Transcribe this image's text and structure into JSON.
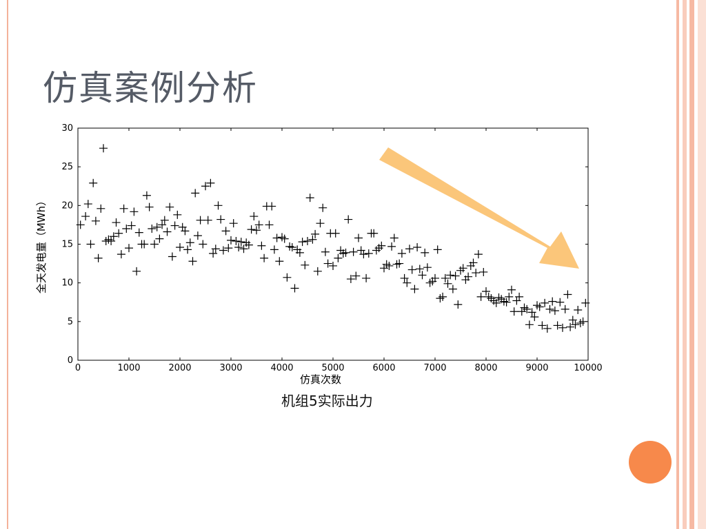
{
  "slide": {
    "title": "仿真案例分析",
    "caption": "机组5实际出力",
    "accent_color": "#f7894b",
    "frame_color": "#f4b29a",
    "arrow_color": "#fbc67a"
  },
  "chart_data": {
    "type": "scatter",
    "marker": "+",
    "xlabel": "仿真次数",
    "ylabel": "全天发电量（MWh）",
    "xlim": [
      0,
      10000
    ],
    "ylim": [
      0,
      30
    ],
    "x_ticks": [
      "0",
      "1000",
      "2000",
      "3000",
      "4000",
      "5000",
      "6000",
      "7000",
      "8000",
      "9000",
      "10000"
    ],
    "y_ticks": [
      "0",
      "5",
      "10",
      "15",
      "20",
      "25",
      "30"
    ],
    "grid": false,
    "points": [
      [
        50,
        17.5
      ],
      [
        150,
        18.6
      ],
      [
        200,
        20.2
      ],
      [
        250,
        15
      ],
      [
        300,
        22.9
      ],
      [
        350,
        18
      ],
      [
        400,
        13.2
      ],
      [
        450,
        19.6
      ],
      [
        500,
        27.4
      ],
      [
        550,
        15.4
      ],
      [
        600,
        15.6
      ],
      [
        650,
        15.4
      ],
      [
        700,
        16
      ],
      [
        750,
        17.8
      ],
      [
        800,
        16.4
      ],
      [
        850,
        13.7
      ],
      [
        900,
        19.6
      ],
      [
        950,
        17
      ],
      [
        1000,
        14.5
      ],
      [
        1050,
        17.4
      ],
      [
        1100,
        19.2
      ],
      [
        1150,
        11.5
      ],
      [
        1200,
        16.5
      ],
      [
        1250,
        15
      ],
      [
        1300,
        15
      ],
      [
        1350,
        21.3
      ],
      [
        1400,
        19.8
      ],
      [
        1450,
        17
      ],
      [
        1500,
        15
      ],
      [
        1550,
        17.2
      ],
      [
        1600,
        15.7
      ],
      [
        1650,
        17.5
      ],
      [
        1700,
        18.1
      ],
      [
        1750,
        16.6
      ],
      [
        1800,
        19.8
      ],
      [
        1850,
        13.4
      ],
      [
        1900,
        17.4
      ],
      [
        1950,
        18.8
      ],
      [
        2000,
        14.6
      ],
      [
        2050,
        17.2
      ],
      [
        2100,
        16.7
      ],
      [
        2150,
        14.3
      ],
      [
        2200,
        15.2
      ],
      [
        2250,
        12.8
      ],
      [
        2300,
        21.6
      ],
      [
        2350,
        16.1
      ],
      [
        2400,
        18.1
      ],
      [
        2450,
        15
      ],
      [
        2500,
        22.5
      ],
      [
        2550,
        18.1
      ],
      [
        2600,
        22.9
      ],
      [
        2650,
        13.8
      ],
      [
        2700,
        14.4
      ],
      [
        2750,
        20
      ],
      [
        2800,
        18.2
      ],
      [
        2850,
        14.2
      ],
      [
        2900,
        16.7
      ],
      [
        2950,
        14.5
      ],
      [
        3000,
        15.5
      ],
      [
        3050,
        17.7
      ],
      [
        3100,
        15.4
      ],
      [
        3150,
        14.6
      ],
      [
        3200,
        15.3
      ],
      [
        3250,
        14.4
      ],
      [
        3300,
        15.2
      ],
      [
        3350,
        14.9
      ],
      [
        3400,
        16.9
      ],
      [
        3450,
        18.6
      ],
      [
        3500,
        16.8
      ],
      [
        3550,
        17.5
      ],
      [
        3600,
        14.8
      ],
      [
        3650,
        13.2
      ],
      [
        3700,
        19.9
      ],
      [
        3750,
        17.5
      ],
      [
        3800,
        19.9
      ],
      [
        3850,
        14.3
      ],
      [
        3900,
        15.8
      ],
      [
        3950,
        12.8
      ],
      [
        4000,
        15.9
      ],
      [
        4050,
        15.7
      ],
      [
        4100,
        10.7
      ],
      [
        4150,
        14.7
      ],
      [
        4200,
        14.6
      ],
      [
        4250,
        9.3
      ],
      [
        4300,
        14.3
      ],
      [
        4350,
        13.9
      ],
      [
        4400,
        15.3
      ],
      [
        4450,
        12.3
      ],
      [
        4500,
        15.4
      ],
      [
        4550,
        21
      ],
      [
        4600,
        15.6
      ],
      [
        4650,
        16.3
      ],
      [
        4700,
        11.5
      ],
      [
        4750,
        17.7
      ],
      [
        4800,
        19.7
      ],
      [
        4850,
        14
      ],
      [
        4900,
        12.5
      ],
      [
        4950,
        16.4
      ],
      [
        5000,
        12.2
      ],
      [
        5050,
        16.4
      ],
      [
        5100,
        13.2
      ],
      [
        5150,
        14.2
      ],
      [
        5200,
        13.8
      ],
      [
        5250,
        13.9
      ],
      [
        5300,
        18.2
      ],
      [
        5350,
        10.5
      ],
      [
        5400,
        14
      ],
      [
        5450,
        10.9
      ],
      [
        5500,
        15.8
      ],
      [
        5550,
        14.2
      ],
      [
        5600,
        13.7
      ],
      [
        5650,
        10.6
      ],
      [
        5700,
        13.8
      ],
      [
        5750,
        16.4
      ],
      [
        5800,
        16.4
      ],
      [
        5850,
        14.2
      ],
      [
        5900,
        14.5
      ],
      [
        5950,
        14.8
      ],
      [
        6000,
        11.9
      ],
      [
        6050,
        12.4
      ],
      [
        6100,
        12.2
      ],
      [
        6150,
        14.7
      ],
      [
        6200,
        15.8
      ],
      [
        6250,
        12.4
      ],
      [
        6300,
        12.5
      ],
      [
        6350,
        13.8
      ],
      [
        6400,
        10.6
      ],
      [
        6450,
        10
      ],
      [
        6500,
        14.4
      ],
      [
        6550,
        11.7
      ],
      [
        6600,
        9.2
      ],
      [
        6650,
        14.6
      ],
      [
        6700,
        11.8
      ],
      [
        6750,
        11
      ],
      [
        6800,
        13.9
      ],
      [
        6850,
        12
      ],
      [
        6900,
        10
      ],
      [
        6950,
        10.2
      ],
      [
        7000,
        10.6
      ],
      [
        7050,
        14.3
      ],
      [
        7100,
        8
      ],
      [
        7150,
        8.2
      ],
      [
        7200,
        10.6
      ],
      [
        7250,
        9.9
      ],
      [
        7300,
        11
      ],
      [
        7350,
        9.2
      ],
      [
        7400,
        10.9
      ],
      [
        7450,
        7.2
      ],
      [
        7500,
        11.6
      ],
      [
        7550,
        11.9
      ],
      [
        7600,
        10.4
      ],
      [
        7650,
        10.8
      ],
      [
        7700,
        12.2
      ],
      [
        7750,
        12.6
      ],
      [
        7800,
        11.3
      ],
      [
        7850,
        13.7
      ],
      [
        7900,
        8.2
      ],
      [
        7950,
        11.4
      ],
      [
        8000,
        8.9
      ],
      [
        8050,
        8.2
      ],
      [
        8100,
        8
      ],
      [
        8150,
        7.7
      ],
      [
        8200,
        7.4
      ],
      [
        8250,
        8.1
      ],
      [
        8300,
        7.9
      ],
      [
        8350,
        7.6
      ],
      [
        8400,
        7.5
      ],
      [
        8450,
        8.2
      ],
      [
        8500,
        9.1
      ],
      [
        8550,
        6.3
      ],
      [
        8600,
        7.7
      ],
      [
        8650,
        8.2
      ],
      [
        8700,
        6.3
      ],
      [
        8750,
        6.8
      ],
      [
        8800,
        6.6
      ],
      [
        8850,
        4.6
      ],
      [
        8900,
        6.2
      ],
      [
        8950,
        5.6
      ],
      [
        9000,
        7.1
      ],
      [
        9050,
        6.9
      ],
      [
        9100,
        4.5
      ],
      [
        9150,
        7.4
      ],
      [
        9200,
        4.1
      ],
      [
        9250,
        6.6
      ],
      [
        9300,
        7.6
      ],
      [
        9350,
        6.4
      ],
      [
        9400,
        4.5
      ],
      [
        9450,
        7.5
      ],
      [
        9500,
        4.2
      ],
      [
        9550,
        6.6
      ],
      [
        9600,
        8.5
      ],
      [
        9650,
        4.3
      ],
      [
        9700,
        5.2
      ],
      [
        9750,
        4.6
      ],
      [
        9800,
        6.5
      ],
      [
        9850,
        4.8
      ],
      [
        9900,
        5
      ],
      [
        9950,
        7.4
      ]
    ]
  }
}
